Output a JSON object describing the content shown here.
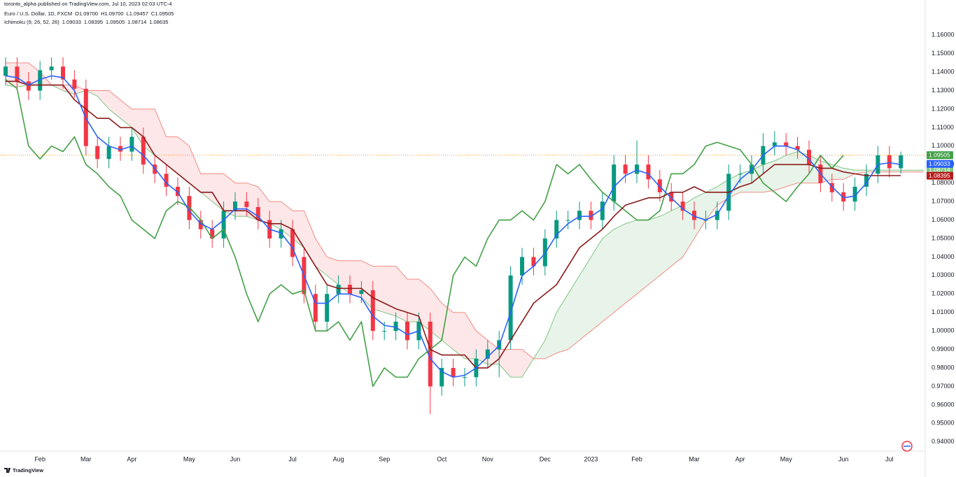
{
  "chart_data": {
    "type": "candlestick",
    "attribution": "toronto_alpha published on TradingView.com, Jul 10, 2023 02:03 UTC-4",
    "symbol": "Euro / U.S. Dollar, 1D, FXCM",
    "ohlc_labels": [
      "O1.09700",
      "H1.09700",
      "L1.09457",
      "C1.09505"
    ],
    "ohlc_color": "#f23645",
    "indicator": "Ichimoku (9, 26, 52, 26)",
    "logo": "TradingView",
    "categories": [
      null,
      null,
      null,
      "Feb",
      null,
      null,
      null,
      "Mar",
      null,
      null,
      null,
      "Apr",
      null,
      null,
      null,
      null,
      "May",
      null,
      null,
      null,
      "Jun",
      null,
      null,
      null,
      null,
      "Jul",
      null,
      null,
      null,
      "Aug",
      null,
      null,
      null,
      "Sep",
      null,
      null,
      null,
      null,
      "Oct",
      null,
      null,
      null,
      "Nov",
      null,
      null,
      null,
      null,
      "Dec",
      null,
      null,
      null,
      "2023",
      null,
      null,
      null,
      "Feb",
      null,
      null,
      null,
      null,
      "Mar",
      null,
      null,
      null,
      "Apr",
      null,
      null,
      null,
      "May",
      null,
      null,
      null,
      null,
      "Jun",
      null,
      null,
      null,
      "Jul",
      null,
      null,
      null
    ],
    "candles": {
      "up_color": "#089981",
      "down_color": "#f23645",
      "last": {
        "value": 1.09505,
        "label": "1.09505",
        "line_color": "#f7931a"
      },
      "open": [
        1.138,
        1.143,
        1.135,
        1.13,
        1.141,
        1.143,
        1.136,
        1.131,
        1.1,
        1.093,
        1.1,
        1.097,
        1.105,
        1.09,
        1.085,
        1.078,
        1.073,
        1.06,
        1.055,
        1.05,
        1.065,
        1.07,
        1.067,
        1.06,
        1.05,
        1.055,
        1.04,
        1.02,
        1.005,
        1.02,
        1.025,
        1.02,
        1.022,
        1.0,
        1.0,
        1.005,
        0.995,
        1.005,
        0.97,
        0.98,
        0.975,
        0.975,
        0.985,
        0.99,
        0.995,
        1.03,
        1.04,
        1.035,
        1.05,
        1.06,
        1.06,
        1.065,
        1.06,
        1.07,
        1.09,
        1.085,
        1.09,
        1.082,
        1.075,
        1.07,
        1.065,
        1.06,
        1.06,
        1.065,
        1.085,
        1.085,
        1.09,
        1.1,
        1.102,
        1.1,
        1.098,
        1.09,
        1.08,
        1.075,
        1.07,
        1.078,
        1.085,
        1.095,
        1.088,
        null,
        null
      ],
      "high": [
        1.148,
        1.148,
        1.14,
        1.146,
        1.148,
        1.148,
        1.141,
        1.136,
        1.105,
        1.105,
        1.105,
        1.11,
        1.11,
        1.095,
        1.09,
        1.083,
        1.078,
        1.065,
        1.06,
        1.07,
        1.075,
        1.075,
        1.072,
        1.065,
        1.06,
        1.06,
        1.045,
        1.025,
        1.025,
        1.03,
        1.03,
        1.027,
        1.027,
        1.005,
        1.01,
        1.01,
        1.01,
        1.01,
        0.985,
        0.985,
        0.98,
        0.99,
        0.995,
        1.0,
        1.035,
        1.045,
        1.045,
        1.055,
        1.065,
        1.065,
        1.07,
        1.07,
        1.075,
        1.095,
        1.095,
        1.103,
        1.095,
        1.087,
        1.08,
        1.075,
        1.07,
        1.065,
        1.07,
        1.09,
        1.09,
        1.095,
        1.107,
        1.108,
        1.107,
        1.105,
        1.103,
        1.095,
        1.085,
        1.08,
        1.083,
        1.09,
        1.1,
        1.1,
        1.097,
        null,
        null
      ],
      "low": [
        1.133,
        1.13,
        1.125,
        1.125,
        1.136,
        1.131,
        1.126,
        1.095,
        1.088,
        1.088,
        1.092,
        1.092,
        1.085,
        1.08,
        1.073,
        1.068,
        1.055,
        1.05,
        1.045,
        1.045,
        1.06,
        1.062,
        1.055,
        1.045,
        1.045,
        1.035,
        1.015,
        1.0,
        1.0,
        1.015,
        1.015,
        1.015,
        0.995,
        0.995,
        0.995,
        0.99,
        0.99,
        0.955,
        0.965,
        0.97,
        0.97,
        0.97,
        0.98,
        0.975,
        0.99,
        1.025,
        1.03,
        1.03,
        1.045,
        1.055,
        1.055,
        1.055,
        1.055,
        1.065,
        1.08,
        1.08,
        1.077,
        1.07,
        1.065,
        1.06,
        1.055,
        1.055,
        1.055,
        1.06,
        1.08,
        1.08,
        1.085,
        1.095,
        1.095,
        1.093,
        1.085,
        1.075,
        1.07,
        1.065,
        1.065,
        1.073,
        1.08,
        1.083,
        1.085,
        null,
        null
      ],
      "close": [
        1.143,
        1.135,
        1.13,
        1.141,
        1.143,
        1.136,
        1.131,
        1.1,
        1.093,
        1.1,
        1.097,
        1.105,
        1.09,
        1.085,
        1.078,
        1.073,
        1.06,
        1.055,
        1.05,
        1.065,
        1.07,
        1.067,
        1.06,
        1.05,
        1.055,
        1.04,
        1.02,
        1.005,
        1.02,
        1.025,
        1.02,
        1.022,
        1.0,
        1.0,
        1.005,
        0.995,
        1.005,
        0.97,
        0.98,
        0.975,
        0.975,
        0.985,
        0.99,
        0.995,
        1.03,
        1.04,
        1.035,
        1.05,
        1.06,
        1.06,
        1.065,
        1.06,
        1.07,
        1.09,
        1.085,
        1.09,
        1.082,
        1.075,
        1.07,
        1.065,
        1.06,
        1.06,
        1.065,
        1.085,
        1.085,
        1.09,
        1.1,
        1.102,
        1.1,
        1.098,
        1.09,
        1.08,
        1.075,
        1.07,
        1.078,
        1.085,
        1.095,
        1.088,
        1.095,
        null,
        null
      ]
    },
    "tenkan": {
      "color": "#2962ff",
      "last": {
        "value": 1.09033,
        "label": "1.09033"
      },
      "values": [
        1.138,
        1.137,
        1.133,
        1.136,
        1.138,
        1.137,
        1.13,
        1.115,
        1.105,
        1.1,
        1.098,
        1.1,
        1.095,
        1.088,
        1.08,
        1.075,
        1.065,
        1.058,
        1.055,
        1.06,
        1.066,
        1.066,
        1.062,
        1.055,
        1.053,
        1.045,
        1.03,
        1.015,
        1.015,
        1.02,
        1.02,
        1.018,
        1.008,
        1.003,
        1.002,
        0.998,
        1.0,
        0.985,
        0.978,
        0.975,
        0.976,
        0.98,
        0.986,
        0.992,
        1.01,
        1.03,
        1.035,
        1.042,
        1.052,
        1.058,
        1.062,
        1.062,
        1.066,
        1.078,
        1.084,
        1.087,
        1.085,
        1.078,
        1.072,
        1.066,
        1.062,
        1.06,
        1.063,
        1.073,
        1.082,
        1.087,
        1.095,
        1.1,
        1.1,
        1.098,
        1.093,
        1.085,
        1.078,
        1.072,
        1.073,
        1.08,
        1.09,
        1.091,
        1.09,
        null,
        null
      ]
    },
    "kijun": {
      "color": "#8b1a1a",
      "last": {
        "value": 1.08395,
        "label": "1.08395"
      },
      "values": [
        1.135,
        1.135,
        1.133,
        1.133,
        1.133,
        1.133,
        1.125,
        1.12,
        1.115,
        1.115,
        1.11,
        1.11,
        1.105,
        1.095,
        1.09,
        1.085,
        1.08,
        1.075,
        1.075,
        1.065,
        1.065,
        1.065,
        1.06,
        1.058,
        1.058,
        1.055,
        1.045,
        1.035,
        1.025,
        1.023,
        1.023,
        1.023,
        1.018,
        1.015,
        1.012,
        1.01,
        1.008,
        0.99,
        0.987,
        0.987,
        0.987,
        0.98,
        0.98,
        0.985,
        0.995,
        1.005,
        1.015,
        1.02,
        1.025,
        1.035,
        1.045,
        1.05,
        1.055,
        1.062,
        1.068,
        1.07,
        1.072,
        1.072,
        1.075,
        1.075,
        1.078,
        1.075,
        1.075,
        1.075,
        1.078,
        1.08,
        1.085,
        1.09,
        1.09,
        1.09,
        1.09,
        1.088,
        1.088,
        1.086,
        1.085,
        1.084,
        1.084,
        1.084,
        1.084,
        null,
        null
      ]
    },
    "chikou": {
      "color": "#43a047",
      "last": {
        "value": 1.09505,
        "label": "1.09505"
      },
      "values": [
        1.136,
        1.131,
        1.1,
        1.093,
        1.1,
        1.097,
        1.105,
        1.09,
        1.085,
        1.078,
        1.073,
        1.06,
        1.055,
        1.05,
        1.065,
        1.07,
        1.067,
        1.06,
        1.05,
        1.055,
        1.04,
        1.02,
        1.005,
        1.02,
        1.025,
        1.02,
        1.022,
        1.0,
        1.0,
        1.005,
        0.995,
        1.005,
        0.97,
        0.98,
        0.975,
        0.975,
        0.985,
        0.99,
        0.995,
        1.03,
        1.04,
        1.035,
        1.05,
        1.06,
        1.06,
        1.065,
        1.06,
        1.07,
        1.09,
        1.085,
        1.09,
        1.082,
        1.075,
        1.07,
        1.065,
        1.06,
        1.06,
        1.065,
        1.085,
        1.085,
        1.09,
        1.1,
        1.102,
        1.1,
        1.098,
        1.09,
        1.08,
        1.075,
        1.07,
        1.078,
        1.085,
        1.095,
        1.088,
        1.095,
        null,
        null,
        null,
        null,
        null,
        null,
        null
      ]
    },
    "span_a": {
      "color": "#81c784",
      "last": {
        "value": 1.08714,
        "label": "1.08714"
      },
      "values": [
        1.133,
        1.132,
        1.133,
        1.133,
        1.133,
        1.13,
        1.128,
        1.13,
        1.127,
        1.12,
        1.115,
        1.11,
        1.1,
        1.095,
        1.09,
        1.085,
        1.08,
        1.075,
        1.07,
        1.065,
        1.062,
        1.062,
        1.06,
        1.058,
        1.055,
        1.05,
        1.045,
        1.035,
        1.03,
        1.025,
        1.02,
        1.018,
        1.012,
        1.01,
        1.008,
        1.005,
        1.005,
        1.0,
        0.995,
        0.99,
        0.985,
        0.985,
        0.982,
        0.982,
        0.975,
        0.975,
        0.985,
        0.995,
        1.01,
        1.02,
        1.03,
        1.04,
        1.05,
        1.055,
        1.058,
        1.06,
        1.06,
        1.062,
        1.065,
        1.068,
        1.072,
        1.075,
        1.078,
        1.082,
        1.085,
        1.087,
        1.09,
        1.092,
        1.095,
        1.097,
        1.095,
        1.092,
        1.09,
        1.088,
        1.087,
        1.087,
        1.087,
        1.087,
        1.087,
        1.087,
        1.087
      ]
    },
    "span_b": {
      "color": "#f28b82",
      "last": {
        "value": 1.08635,
        "label": "1.08635"
      },
      "values": [
        1.145,
        1.145,
        1.145,
        1.14,
        1.133,
        1.133,
        1.133,
        1.13,
        1.13,
        1.13,
        1.125,
        1.12,
        1.12,
        1.12,
        1.105,
        1.105,
        1.1,
        1.085,
        1.085,
        1.085,
        1.08,
        1.08,
        1.078,
        1.07,
        1.07,
        1.065,
        1.065,
        1.05,
        1.04,
        1.038,
        1.038,
        1.038,
        1.035,
        1.035,
        1.035,
        1.028,
        1.028,
        1.023,
        1.015,
        1.01,
        1.01,
        1.0,
        0.995,
        0.99,
        0.99,
        0.99,
        0.985,
        0.985,
        0.988,
        0.99,
        0.995,
        1.0,
        1.005,
        1.01,
        1.015,
        1.02,
        1.025,
        1.03,
        1.035,
        1.04,
        1.05,
        1.06,
        1.068,
        1.072,
        1.075,
        1.075,
        1.075,
        1.076,
        1.078,
        1.08,
        1.08,
        1.08,
        1.082,
        1.082,
        1.085,
        1.086,
        1.086,
        1.086,
        1.086,
        1.086,
        1.086
      ]
    },
    "cloud": {
      "up_color": "rgba(67,160,71,0.12)",
      "down_color": "rgba(242,54,69,0.12)"
    },
    "ylim": [
      0.935,
      1.179
    ],
    "yticks": [
      {
        "value": 0.94,
        "label": "0.94000"
      },
      {
        "value": 0.95,
        "label": "0.95000"
      },
      {
        "value": 0.96,
        "label": "0.96000"
      },
      {
        "value": 0.97,
        "label": "0.97000"
      },
      {
        "value": 0.98,
        "label": "0.98000"
      },
      {
        "value": 0.99,
        "label": "0.99000"
      },
      {
        "value": 1.0,
        "label": "1.00000"
      },
      {
        "value": 1.01,
        "label": "1.01000"
      },
      {
        "value": 1.02,
        "label": "1.02000"
      },
      {
        "value": 1.03,
        "label": "1.03000"
      },
      {
        "value": 1.04,
        "label": "1.04000"
      },
      {
        "value": 1.05,
        "label": "1.05000"
      },
      {
        "value": 1.06,
        "label": "1.06000"
      },
      {
        "value": 1.07,
        "label": "1.07000"
      },
      {
        "value": 1.08,
        "label": "1.08000"
      },
      {
        "value": 1.09,
        "label": "1.09000"
      },
      {
        "value": 1.1,
        "label": "1.10000"
      },
      {
        "value": 1.11,
        "label": "1.11000"
      },
      {
        "value": 1.12,
        "label": "1.12000"
      },
      {
        "value": 1.13,
        "label": "1.13000"
      },
      {
        "value": 1.14,
        "label": "1.14000"
      },
      {
        "value": 1.15,
        "label": "1.15000"
      },
      {
        "value": 1.16,
        "label": "1.16000"
      }
    ],
    "grid": false
  }
}
